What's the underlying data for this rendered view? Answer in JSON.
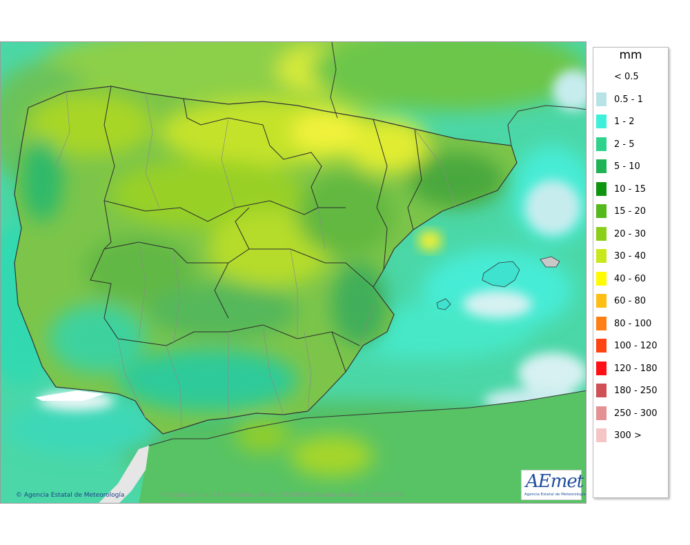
{
  "map": {
    "copyright": "Agencia Estatal de Meteorología",
    "caption": "Precipitación en 24 h máxima. Válido: 20260502 Pasada modelo: 2026043000",
    "logo_text": "AEmet",
    "logo_subtitle": "Agencia Estatal de Meteorología"
  },
  "legend": {
    "unit": "mm",
    "items": [
      {
        "label": "< 0.5",
        "color": "#ffffff"
      },
      {
        "label": "0.5 - 1",
        "color": "#b8e3e6"
      },
      {
        "label": "1 - 2",
        "color": "#3ef0d9"
      },
      {
        "label": "2 - 5",
        "color": "#2ed28a"
      },
      {
        "label": "5 - 10",
        "color": "#1fb356"
      },
      {
        "label": "10 - 15",
        "color": "#0f9410"
      },
      {
        "label": "15 - 20",
        "color": "#55b81d"
      },
      {
        "label": "20 - 30",
        "color": "#8ccf1a"
      },
      {
        "label": "30 - 40",
        "color": "#c9e81c"
      },
      {
        "label": "40 - 60",
        "color": "#fffb00"
      },
      {
        "label": "60 - 80",
        "color": "#ffbe14"
      },
      {
        "label": "80 - 100",
        "color": "#ff7f14"
      },
      {
        "label": "100 - 120",
        "color": "#ff4413"
      },
      {
        "label": "120 - 180",
        "color": "#ff0f16"
      },
      {
        "label": "180 - 250",
        "color": "#cf5155"
      },
      {
        "label": "250 - 300",
        "color": "#e39192"
      },
      {
        "label": "300 >",
        "color": "#f5c4c4"
      }
    ]
  }
}
